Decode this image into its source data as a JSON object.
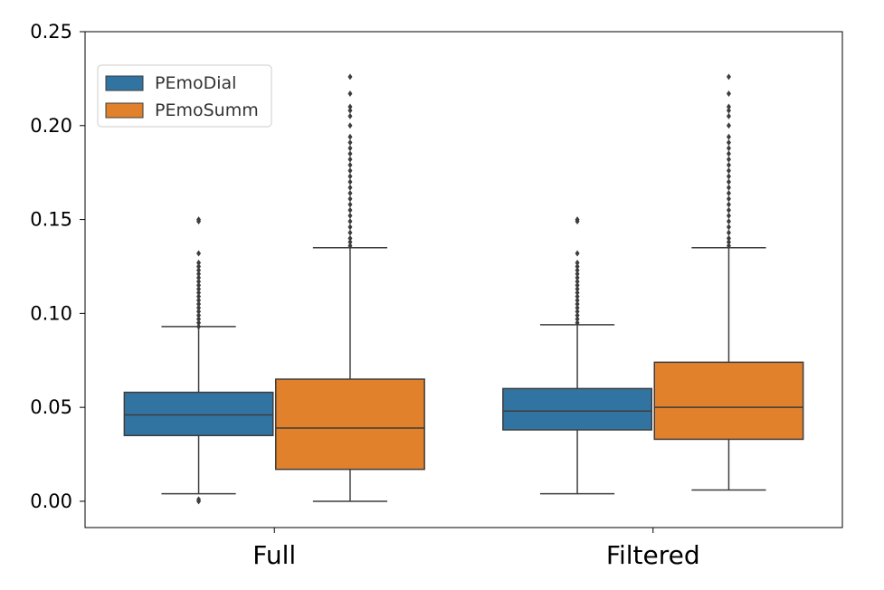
{
  "chart_data": {
    "type": "box",
    "title": "",
    "xlabel": "",
    "ylabel": "",
    "ylim": [
      -0.014,
      0.25
    ],
    "yticks": [
      0.0,
      0.05,
      0.1,
      0.15,
      0.2,
      0.25
    ],
    "ytick_labels": [
      "0.00",
      "0.05",
      "0.10",
      "0.15",
      "0.20",
      "0.25"
    ],
    "categories": [
      "Full",
      "Filtered"
    ],
    "legend": {
      "placement": "upper-left"
    },
    "grid": false,
    "series": [
      {
        "name": "PEmoDial",
        "color": "#3274a1",
        "boxes": [
          {
            "whisker_low": 0.004,
            "q1": 0.035,
            "median": 0.046,
            "q3": 0.058,
            "whisker_high": 0.093,
            "outliers": [
              0.0,
              0.001,
              0.093,
              0.095,
              0.097,
              0.099,
              0.101,
              0.103,
              0.105,
              0.107,
              0.109,
              0.111,
              0.113,
              0.115,
              0.117,
              0.119,
              0.121,
              0.123,
              0.125,
              0.127,
              0.132,
              0.149,
              0.15
            ]
          },
          {
            "whisker_low": 0.004,
            "q1": 0.038,
            "median": 0.048,
            "q3": 0.06,
            "whisker_high": 0.094,
            "outliers": [
              0.095,
              0.097,
              0.099,
              0.101,
              0.103,
              0.105,
              0.107,
              0.109,
              0.111,
              0.113,
              0.115,
              0.117,
              0.119,
              0.121,
              0.123,
              0.125,
              0.127,
              0.132,
              0.149,
              0.15
            ]
          }
        ]
      },
      {
        "name": "PEmoSumm",
        "color": "#e1812c",
        "boxes": [
          {
            "whisker_low": 0.0,
            "q1": 0.017,
            "median": 0.039,
            "q3": 0.065,
            "whisker_high": 0.135,
            "outliers": [
              0.136,
              0.138,
              0.14,
              0.143,
              0.146,
              0.149,
              0.152,
              0.155,
              0.158,
              0.161,
              0.164,
              0.167,
              0.17,
              0.173,
              0.176,
              0.179,
              0.182,
              0.185,
              0.188,
              0.191,
              0.194,
              0.2,
              0.205,
              0.208,
              0.21,
              0.217,
              0.226
            ]
          },
          {
            "whisker_low": 0.006,
            "q1": 0.033,
            "median": 0.05,
            "q3": 0.074,
            "whisker_high": 0.135,
            "outliers": [
              0.136,
              0.138,
              0.14,
              0.143,
              0.146,
              0.149,
              0.152,
              0.155,
              0.158,
              0.161,
              0.164,
              0.167,
              0.17,
              0.173,
              0.176,
              0.179,
              0.182,
              0.185,
              0.188,
              0.191,
              0.194,
              0.2,
              0.205,
              0.208,
              0.21,
              0.217,
              0.226
            ]
          }
        ]
      }
    ]
  }
}
